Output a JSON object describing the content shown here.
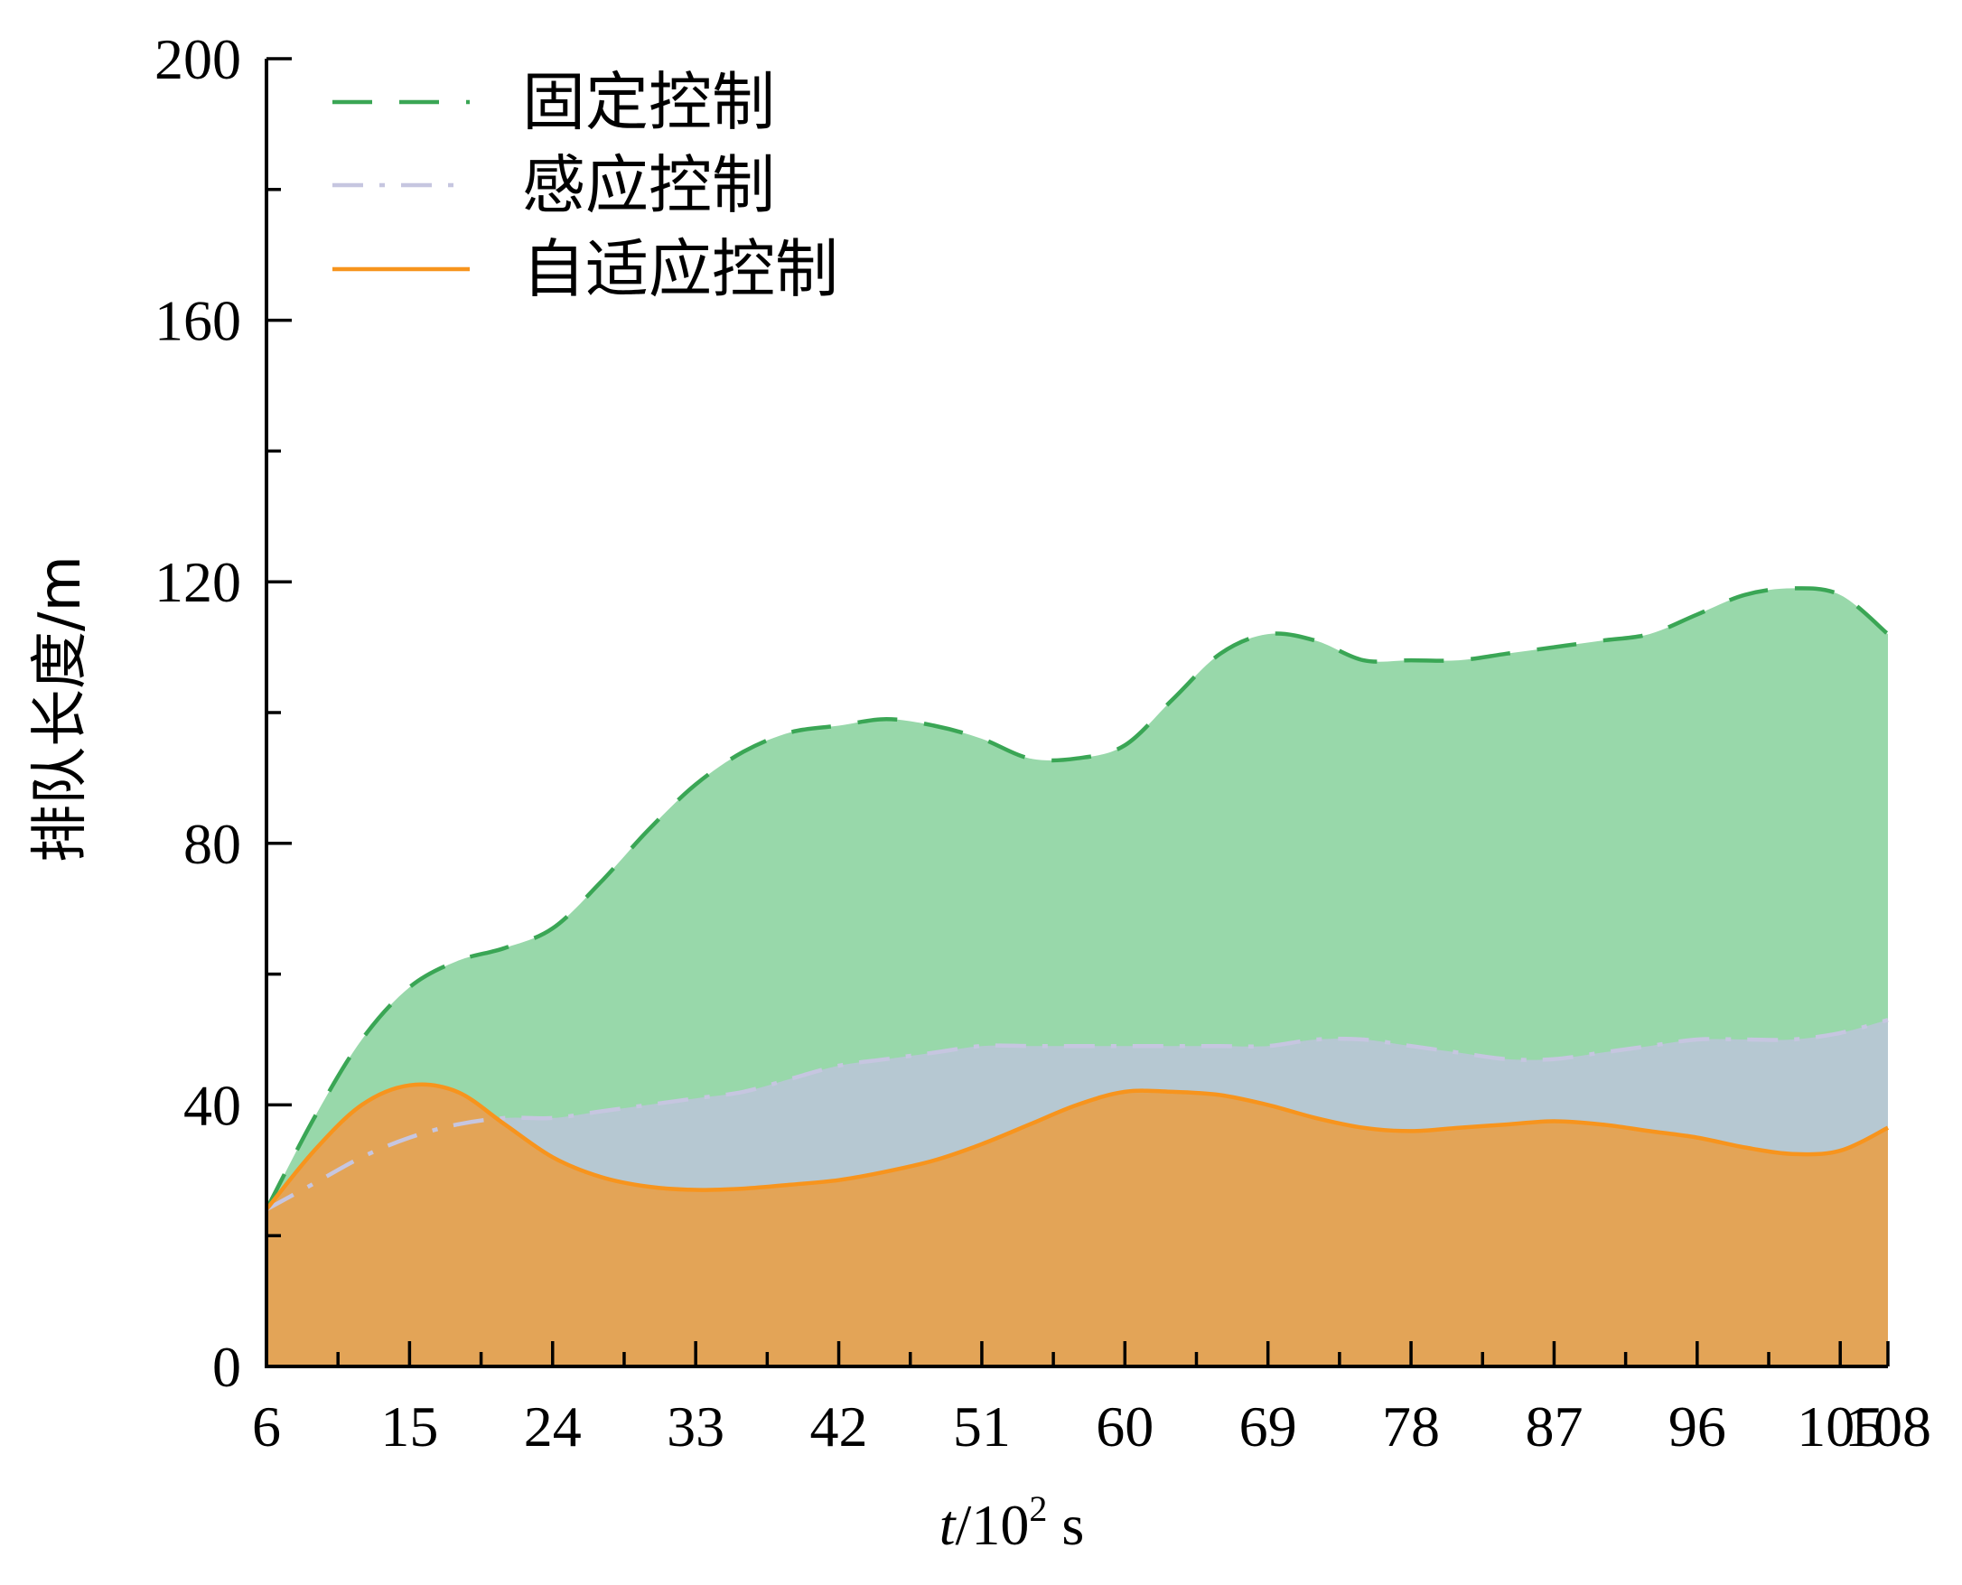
{
  "chart_data": {
    "type": "area",
    "title": "",
    "xlabel_var": "t",
    "xlabel_rest": "/10",
    "xlabel_exp": "2",
    "xlabel_unit": " s",
    "ylabel": "排队长度/m",
    "xlim": [
      6,
      108
    ],
    "ylim": [
      0,
      200
    ],
    "x_ticks": [
      6,
      15,
      24,
      33,
      42,
      51,
      60,
      69,
      78,
      87,
      96,
      105,
      108
    ],
    "y_ticks": [
      0,
      40,
      80,
      120,
      160,
      200
    ],
    "y_minor_step": 20,
    "x_minor_step": 4.5,
    "legend_position": "top-left",
    "series": [
      {
        "name": "固定控制",
        "style": "dashed",
        "line_color": "#3aa655",
        "fill_color": "#98d8aa",
        "x": [
          6,
          9,
          12,
          15,
          18,
          21,
          24,
          27,
          30,
          33,
          36,
          39,
          42,
          45,
          48,
          51,
          54,
          57,
          60,
          63,
          66,
          69,
          72,
          75,
          78,
          81,
          84,
          87,
          90,
          93,
          96,
          99,
          102,
          105,
          108
        ],
        "values": [
          24,
          38,
          50,
          58,
          62,
          64,
          67,
          74,
          82,
          89,
          94,
          97,
          98,
          99,
          98,
          96,
          93,
          93,
          95,
          102,
          109,
          112,
          111,
          108,
          108,
          108,
          109,
          110,
          111,
          112,
          115,
          118,
          119,
          118,
          112
        ]
      },
      {
        "name": "感应控制",
        "style": "dashdot",
        "line_color": "#c6c6e0",
        "fill_color": "#b6c8d2",
        "x": [
          6,
          9,
          12,
          15,
          18,
          21,
          24,
          27,
          30,
          33,
          36,
          39,
          42,
          45,
          48,
          51,
          54,
          57,
          60,
          63,
          66,
          69,
          72,
          75,
          78,
          81,
          84,
          87,
          90,
          93,
          96,
          99,
          102,
          105,
          108
        ],
        "values": [
          24,
          28,
          32,
          35,
          37,
          38,
          38,
          39,
          40,
          41,
          42,
          44,
          46,
          47,
          48,
          49,
          49,
          49,
          49,
          49,
          49,
          49,
          50,
          50,
          49,
          48,
          47,
          47,
          48,
          49,
          50,
          50,
          50,
          51,
          53
        ]
      },
      {
        "name": "自适应控制",
        "style": "solid",
        "line_color": "#f7941d",
        "fill_color": "#e3a457",
        "x": [
          6,
          9,
          12,
          15,
          18,
          21,
          24,
          27,
          30,
          33,
          36,
          39,
          42,
          45,
          48,
          51,
          54,
          57,
          60,
          63,
          66,
          69,
          72,
          75,
          78,
          81,
          84,
          87,
          90,
          93,
          96,
          99,
          102,
          105,
          108
        ],
        "values": [
          24,
          33,
          40,
          43,
          42,
          37,
          32,
          29,
          27.5,
          27,
          27.2,
          27.8,
          28.5,
          29.8,
          31.5,
          34,
          37,
          40,
          42,
          42,
          41.5,
          40,
          38,
          36.5,
          36,
          36.5,
          37,
          37.5,
          37,
          36,
          35,
          33.5,
          32.5,
          33,
          36.5
        ]
      }
    ]
  }
}
